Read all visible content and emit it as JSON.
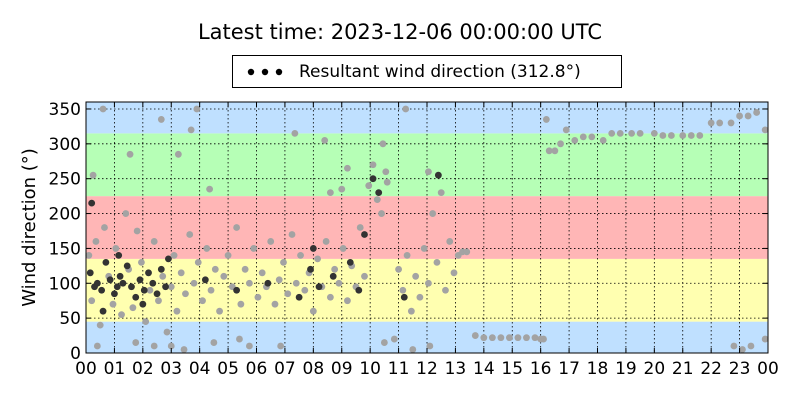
{
  "chart_data": {
    "type": "scatter",
    "title": "Latest time: 2023-12-06 00:00:00 UTC",
    "xlabel": "",
    "ylabel": "Wind direction (°)",
    "xlim": [
      0,
      24
    ],
    "ylim": [
      0,
      360
    ],
    "grid": true,
    "legend": {
      "placement": "top-center",
      "label": "Resultant wind direction (312.8°)"
    },
    "x_tick_labels": [
      "00",
      "01",
      "02",
      "03",
      "04",
      "05",
      "06",
      "07",
      "08",
      "09",
      "10",
      "11",
      "12",
      "13",
      "14",
      "15",
      "16",
      "17",
      "18",
      "19",
      "20",
      "21",
      "22",
      "23",
      "00"
    ],
    "y_ticks": [
      0,
      50,
      100,
      150,
      200,
      250,
      300,
      350
    ],
    "bands": [
      {
        "from": 0,
        "to": 45,
        "color": "#bfe0ff"
      },
      {
        "from": 45,
        "to": 135,
        "color": "#ffffb0"
      },
      {
        "from": 135,
        "to": 225,
        "color": "#ffb6b6"
      },
      {
        "from": 225,
        "to": 315,
        "color": "#b6ffb6"
      },
      {
        "from": 315,
        "to": 360,
        "color": "#bfe0ff"
      }
    ],
    "colors": {
      "dark_point": "#333333",
      "light_point": "#a3a3a3"
    },
    "series": [
      {
        "shade": "dark",
        "values": [
          [
            0.15,
            115
          ],
          [
            0.3,
            95
          ],
          [
            0.4,
            100
          ],
          [
            0.55,
            90
          ],
          [
            0.7,
            130
          ],
          [
            0.85,
            105
          ],
          [
            1.0,
            85
          ],
          [
            1.1,
            95
          ],
          [
            1.2,
            110
          ],
          [
            1.3,
            100
          ],
          [
            1.45,
            125
          ],
          [
            1.6,
            95
          ],
          [
            1.75,
            80
          ],
          [
            1.9,
            105
          ],
          [
            2.05,
            90
          ],
          [
            2.2,
            115
          ],
          [
            2.35,
            100
          ],
          [
            2.5,
            85
          ],
          [
            2.65,
            120
          ],
          [
            2.8,
            95
          ],
          [
            0.6,
            60
          ],
          [
            1.15,
            140
          ],
          [
            2.0,
            70
          ],
          [
            0.2,
            215
          ],
          [
            2.9,
            135
          ],
          [
            4.2,
            105
          ],
          [
            5.3,
            90
          ],
          [
            6.4,
            100
          ],
          [
            7.5,
            80
          ],
          [
            7.9,
            120
          ],
          [
            8.2,
            95
          ],
          [
            8.7,
            110
          ],
          [
            9.3,
            130
          ],
          [
            9.6,
            90
          ],
          [
            10.1,
            250
          ],
          [
            10.3,
            230
          ],
          [
            12.4,
            255
          ],
          [
            8.0,
            150
          ],
          [
            11.2,
            80
          ],
          [
            9.8,
            170
          ]
        ]
      },
      {
        "shade": "light",
        "values": [
          [
            0.1,
            140
          ],
          [
            0.2,
            75
          ],
          [
            0.35,
            160
          ],
          [
            0.5,
            40
          ],
          [
            0.65,
            180
          ],
          [
            0.8,
            110
          ],
          [
            0.95,
            70
          ],
          [
            1.05,
            150
          ],
          [
            1.25,
            55
          ],
          [
            1.4,
            200
          ],
          [
            1.5,
            120
          ],
          [
            1.65,
            65
          ],
          [
            1.8,
            175
          ],
          [
            1.95,
            130
          ],
          [
            2.1,
            45
          ],
          [
            2.25,
            90
          ],
          [
            2.4,
            160
          ],
          [
            2.55,
            75
          ],
          [
            2.7,
            110
          ],
          [
            2.85,
            30
          ],
          [
            3.0,
            95
          ],
          [
            3.1,
            140
          ],
          [
            3.2,
            60
          ],
          [
            3.35,
            115
          ],
          [
            3.5,
            85
          ],
          [
            3.65,
            170
          ],
          [
            3.8,
            100
          ],
          [
            3.95,
            130
          ],
          [
            4.1,
            75
          ],
          [
            4.25,
            150
          ],
          [
            4.4,
            90
          ],
          [
            4.55,
            120
          ],
          [
            4.7,
            60
          ],
          [
            4.85,
            110
          ],
          [
            5.0,
            140
          ],
          [
            5.15,
            95
          ],
          [
            5.3,
            180
          ],
          [
            5.45,
            70
          ],
          [
            5.6,
            120
          ],
          [
            5.75,
            100
          ],
          [
            5.9,
            150
          ],
          [
            6.05,
            80
          ],
          [
            6.2,
            115
          ],
          [
            6.35,
            95
          ],
          [
            6.5,
            160
          ],
          [
            6.65,
            70
          ],
          [
            6.8,
            105
          ],
          [
            6.95,
            130
          ],
          [
            7.1,
            85
          ],
          [
            7.25,
            170
          ],
          [
            7.4,
            100
          ],
          [
            7.55,
            140
          ],
          [
            7.7,
            90
          ],
          [
            7.85,
            115
          ],
          [
            8.0,
            60
          ],
          [
            8.15,
            135
          ],
          [
            8.3,
            95
          ],
          [
            8.45,
            160
          ],
          [
            8.6,
            80
          ],
          [
            8.75,
            120
          ],
          [
            8.9,
            100
          ],
          [
            9.05,
            150
          ],
          [
            9.2,
            75
          ],
          [
            9.35,
            125
          ],
          [
            9.5,
            95
          ],
          [
            9.65,
            180
          ],
          [
            9.8,
            110
          ],
          [
            9.95,
            240
          ],
          [
            10.1,
            270
          ],
          [
            10.25,
            220
          ],
          [
            10.4,
            200
          ],
          [
            10.55,
            260
          ],
          [
            9.2,
            265
          ],
          [
            9.0,
            235
          ],
          [
            8.6,
            230
          ],
          [
            10.6,
            245
          ],
          [
            11.0,
            120
          ],
          [
            11.15,
            90
          ],
          [
            11.3,
            140
          ],
          [
            11.45,
            60
          ],
          [
            11.6,
            110
          ],
          [
            11.75,
            80
          ],
          [
            11.9,
            150
          ],
          [
            12.05,
            100
          ],
          [
            12.2,
            200
          ],
          [
            12.35,
            130
          ],
          [
            12.5,
            230
          ],
          [
            12.65,
            90
          ],
          [
            12.8,
            160
          ],
          [
            12.95,
            115
          ],
          [
            13.1,
            140
          ],
          [
            13.25,
            145
          ],
          [
            13.4,
            145
          ],
          [
            0.25,
            255
          ],
          [
            0.6,
            350
          ],
          [
            1.55,
            285
          ],
          [
            2.65,
            335
          ],
          [
            3.25,
            285
          ],
          [
            3.7,
            320
          ],
          [
            3.9,
            350
          ],
          [
            4.35,
            235
          ],
          [
            7.35,
            315
          ],
          [
            8.4,
            305
          ],
          [
            10.45,
            300
          ],
          [
            11.25,
            350
          ],
          [
            12.05,
            260
          ],
          [
            0.4,
            10
          ],
          [
            1.75,
            15
          ],
          [
            2.4,
            10
          ],
          [
            3.0,
            10
          ],
          [
            3.45,
            5
          ],
          [
            4.5,
            15
          ],
          [
            5.4,
            20
          ],
          [
            5.75,
            10
          ],
          [
            6.85,
            10
          ],
          [
            10.5,
            15
          ],
          [
            10.85,
            20
          ],
          [
            11.5,
            5
          ],
          [
            12.1,
            10
          ],
          [
            13.7,
            25
          ],
          [
            14.0,
            22
          ],
          [
            14.3,
            22
          ],
          [
            14.6,
            22
          ],
          [
            14.9,
            22
          ],
          [
            15.2,
            22
          ],
          [
            15.5,
            22
          ],
          [
            15.8,
            22
          ],
          [
            16.1,
            20
          ],
          [
            16.3,
            290
          ],
          [
            16.5,
            290
          ],
          [
            16.7,
            300
          ],
          [
            16.9,
            320
          ],
          [
            17.2,
            305
          ],
          [
            17.5,
            310
          ],
          [
            17.8,
            310
          ],
          [
            18.2,
            305
          ],
          [
            18.5,
            315
          ],
          [
            18.8,
            315
          ],
          [
            19.2,
            315
          ],
          [
            19.5,
            315
          ],
          [
            20.0,
            315
          ],
          [
            20.3,
            312
          ],
          [
            20.6,
            312
          ],
          [
            21.0,
            312
          ],
          [
            21.3,
            312
          ],
          [
            21.6,
            312
          ],
          [
            22.0,
            330
          ],
          [
            22.3,
            330
          ],
          [
            22.7,
            330
          ],
          [
            23.0,
            340
          ],
          [
            23.3,
            340
          ],
          [
            23.6,
            345
          ],
          [
            23.9,
            320
          ],
          [
            22.8,
            10
          ],
          [
            23.1,
            5
          ],
          [
            23.4,
            10
          ],
          [
            23.9,
            20
          ],
          [
            16.2,
            335
          ],
          [
            16.0,
            20
          ]
        ]
      }
    ]
  }
}
